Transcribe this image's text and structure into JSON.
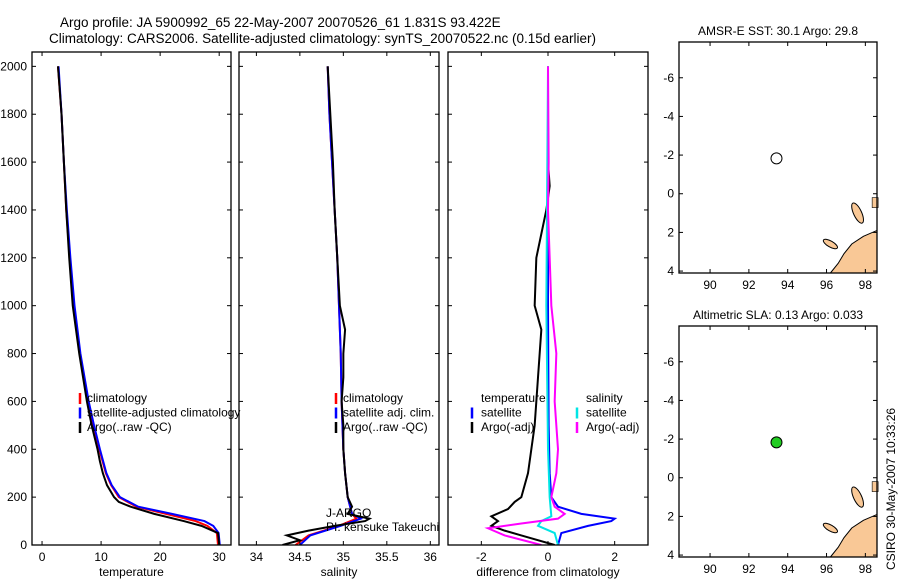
{
  "header": {
    "line1": "Argo profile: JA 5900992_65 22-May-2007 20070526_61 1.831S 93.422E",
    "line2": "Climatology: CARS2006. Satellite-adjusted climatology: synTS_20070522.nc (0.15d earlier)"
  },
  "footer_stamp": "CSIRO 30-May-2007 10:33:26",
  "colors": {
    "climatology": "#ff0000",
    "satellite": "#0000ff",
    "argo": "#000000",
    "sal_satellite": "#00e5e5",
    "sal_argo": "#ff00ff",
    "land": "#f9c896"
  },
  "chart_data": [
    {
      "type": "line",
      "id": "temperature",
      "xlabel": "temperature",
      "ylabel": "",
      "xlim": [
        -1.7,
        32
      ],
      "ylim": [
        2060,
        0
      ],
      "xticks": [
        0,
        10,
        20,
        30
      ],
      "yticks": [
        0,
        200,
        400,
        600,
        800,
        1000,
        1200,
        1400,
        1600,
        1800,
        2000
      ],
      "legend": [
        "climatology",
        "satellite-adjusted climatology",
        "Argo(..raw -QC)"
      ],
      "series": [
        {
          "name": "climatology",
          "color": "#ff0000",
          "depth": [
            0,
            50,
            80,
            100,
            130,
            160,
            200,
            250,
            300,
            400,
            500,
            600,
            800,
            1000,
            1200,
            1400,
            1600,
            1800,
            2000
          ],
          "values": [
            29.8,
            29.6,
            28,
            26,
            21,
            16,
            13,
            11.7,
            10.8,
            9.7,
            8.7,
            7.8,
            6.4,
            5.4,
            4.7,
            4.1,
            3.7,
            3.3,
            2.7
          ]
        },
        {
          "name": "satellite-adjusted climatology",
          "color": "#0000ff",
          "depth": [
            0,
            50,
            80,
            100,
            130,
            160,
            200,
            250,
            300,
            400,
            500,
            600,
            800,
            1000,
            1200,
            1400,
            1600,
            1800,
            2000
          ],
          "values": [
            30.1,
            29.9,
            29,
            27.5,
            22,
            16.3,
            13.2,
            11.8,
            10.9,
            9.8,
            8.8,
            7.9,
            6.5,
            5.5,
            4.8,
            4.2,
            3.7,
            3.3,
            2.8
          ]
        },
        {
          "name": "Argo(..raw -QC)",
          "color": "#000000",
          "depth": [
            0,
            50,
            80,
            100,
            130,
            160,
            180,
            200,
            250,
            300,
            350,
            400,
            500,
            600,
            800,
            1000,
            1200,
            1400,
            1600,
            1800,
            2000
          ],
          "values": [
            30,
            29.8,
            27,
            24,
            19,
            15,
            13,
            12.2,
            11,
            10.3,
            9.8,
            9.4,
            8.4,
            7.6,
            6.3,
            5.2,
            4.6,
            4.1,
            3.7,
            3.3,
            2.7
          ]
        }
      ]
    },
    {
      "type": "line",
      "id": "salinity",
      "xlabel": "salinity",
      "xlim": [
        33.8,
        36.1
      ],
      "ylim": [
        2060,
        0
      ],
      "xticks": [
        34,
        34.5,
        35,
        35.5,
        36
      ],
      "yticks": [
        0,
        200,
        400,
        600,
        800,
        1000,
        1200,
        1400,
        1600,
        1800,
        2000
      ],
      "legend": [
        "climatology",
        "satellite adj. clim.",
        "Argo(..raw -QC)"
      ],
      "annotation": [
        "J-ARGO",
        "PI: kensuke Takeuchi"
      ],
      "series": [
        {
          "name": "climatology",
          "color": "#ff0000",
          "depth": [
            0,
            40,
            80,
            110,
            130,
            200,
            300,
            400,
            600,
            800,
            1000,
            1200,
            1400,
            1600,
            1800,
            2000
          ],
          "values": [
            34.45,
            34.6,
            34.95,
            35.15,
            35.1,
            35.05,
            35.02,
            35.0,
            34.98,
            34.97,
            34.95,
            34.93,
            34.9,
            34.87,
            34.84,
            34.82
          ]
        },
        {
          "name": "satellite adj. clim.",
          "color": "#0000ff",
          "depth": [
            0,
            40,
            80,
            110,
            130,
            200,
            300,
            400,
            600,
            800,
            1000,
            1200,
            1400,
            1600,
            1800,
            2000
          ],
          "values": [
            34.5,
            34.62,
            34.97,
            35.2,
            35.1,
            35.05,
            35.02,
            35.0,
            34.98,
            34.97,
            34.95,
            34.93,
            34.9,
            34.87,
            34.84,
            34.82
          ]
        },
        {
          "name": "Argo(..raw -QC)",
          "color": "#000000",
          "depth": [
            0,
            20,
            40,
            60,
            80,
            100,
            110,
            130,
            160,
            200,
            300,
            400,
            500,
            600,
            700,
            800,
            900,
            1000,
            1200,
            1400,
            1600,
            1800,
            2000
          ],
          "values": [
            34.3,
            34.5,
            34.35,
            34.6,
            34.9,
            35.25,
            35.3,
            35.05,
            35.1,
            35.05,
            35.02,
            35.0,
            35.0,
            34.98,
            35.0,
            35.0,
            35.02,
            34.96,
            34.93,
            34.9,
            34.88,
            34.85,
            34.82
          ]
        }
      ]
    },
    {
      "type": "line",
      "id": "difference",
      "xlabel": "difference from climatology",
      "xlim": [
        -3,
        3
      ],
      "ylim": [
        2060,
        0
      ],
      "xticks": [
        -2,
        0,
        2
      ],
      "yticks": [
        0,
        200,
        400,
        600,
        800,
        1000,
        1200,
        1400,
        1600,
        1800,
        2000
      ],
      "legend_headers": [
        "temperature",
        "salinity"
      ],
      "legend": [
        "satellite",
        "Argo(-adj)",
        "satellite",
        "Argo(-adj)"
      ],
      "series": [
        {
          "name": "temperature satellite",
          "color": "#0000ff",
          "depth": [
            0,
            50,
            80,
            100,
            110,
            130,
            160,
            200,
            300,
            500,
            1000,
            2000
          ],
          "values": [
            0.3,
            0.4,
            1.2,
            1.9,
            2.0,
            1.0,
            0.3,
            0.1,
            0.05,
            0.02,
            0.0,
            0.0
          ]
        },
        {
          "name": "temperature Argo(-adj)",
          "color": "#000000",
          "depth": [
            0,
            40,
            60,
            80,
            100,
            120,
            150,
            180,
            200,
            300,
            400,
            500,
            600,
            700,
            800,
            900,
            950,
            1000,
            1200,
            1300,
            1400,
            1500,
            1600,
            2000
          ],
          "values": [
            0.2,
            -0.8,
            -1.3,
            -1.7,
            -1.5,
            -1.7,
            -1.2,
            -1.0,
            -0.8,
            -0.6,
            -0.5,
            -0.4,
            -0.35,
            -0.3,
            -0.25,
            -0.2,
            -0.3,
            -0.4,
            -0.35,
            -0.2,
            -0.05,
            0.05,
            0.0,
            0.0
          ]
        },
        {
          "name": "salinity satellite",
          "color": "#00e5e5",
          "depth": [
            0,
            50,
            80,
            100,
            120,
            200,
            400,
            1000,
            2000
          ],
          "values": [
            0.3,
            0.2,
            -0.3,
            -0.2,
            0.1,
            0.05,
            0.0,
            -0.05,
            0.0
          ]
        },
        {
          "name": "salinity Argo(-adj)",
          "color": "#ff00ff",
          "depth": [
            0,
            40,
            70,
            90,
            110,
            130,
            160,
            200,
            300,
            400,
            600,
            800,
            1000,
            1200,
            1400,
            1600,
            2000
          ],
          "values": [
            -0.2,
            -1.3,
            -1.8,
            -0.8,
            0.3,
            0.5,
            0.2,
            0.1,
            0.25,
            0.3,
            0.2,
            0.25,
            0.1,
            0.05,
            0.0,
            0.02,
            0.0
          ]
        }
      ]
    },
    {
      "type": "heatmap",
      "id": "sst-map",
      "title": "AMSR-E SST: 30.1 Argo: 29.8",
      "xlim": [
        88.4,
        98.6
      ],
      "ylim": [
        -7.85,
        4.1
      ],
      "xticks": [
        90,
        92,
        94,
        96,
        98
      ],
      "yticks": [
        4,
        2,
        0,
        -2,
        -4,
        -6
      ],
      "argo_position": {
        "lon": 93.422,
        "lat": -1.831
      }
    },
    {
      "type": "heatmap",
      "id": "sla-map",
      "title": "Altimetric SLA: 0.13 Argo: 0.033",
      "xlim": [
        88.4,
        98.6
      ],
      "ylim": [
        -7.85,
        4.1
      ],
      "xticks": [
        90,
        92,
        94,
        96,
        98
      ],
      "yticks": [
        4,
        2,
        0,
        -2,
        -4,
        -6
      ],
      "argo_position": {
        "lon": 93.422,
        "lat": -1.831
      }
    }
  ]
}
